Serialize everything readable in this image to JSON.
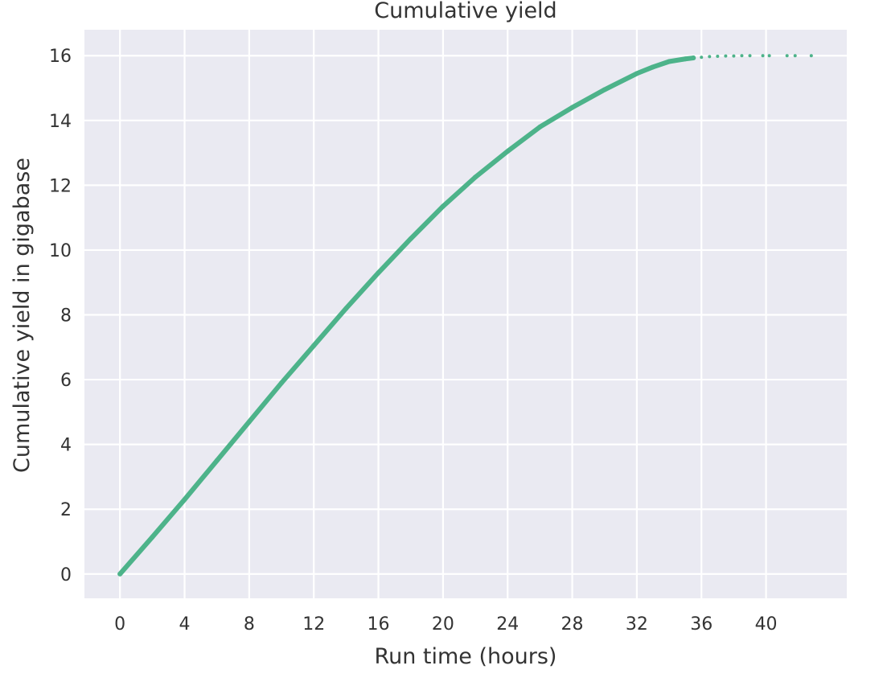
{
  "chart_data": {
    "type": "scatter",
    "title": "Cumulative yield",
    "xlabel": "Run time (hours)",
    "ylabel": "Cumulative yield in gigabase",
    "xlim": [
      -2.2,
      45.0
    ],
    "ylim": [
      -0.75,
      16.8
    ],
    "xticks": [
      0,
      4,
      8,
      12,
      16,
      20,
      24,
      28,
      32,
      36,
      40
    ],
    "yticks": [
      0,
      2,
      4,
      6,
      8,
      10,
      12,
      14,
      16
    ],
    "grid": true,
    "legend": "none",
    "style": {
      "background": "#eaeaf2",
      "grid_color": "#ffffff",
      "series_color": "#4db38a"
    },
    "series": [
      {
        "points": [
          [
            0.0,
            0.0
          ],
          [
            2.0,
            1.14
          ],
          [
            4.0,
            2.3
          ],
          [
            6.0,
            3.5
          ],
          [
            8.0,
            4.7
          ],
          [
            10.0,
            5.9
          ],
          [
            12.0,
            7.05
          ],
          [
            14.0,
            8.2
          ],
          [
            16.0,
            9.3
          ],
          [
            18.0,
            10.35
          ],
          [
            20.0,
            11.35
          ],
          [
            22.0,
            12.25
          ],
          [
            24.0,
            13.05
          ],
          [
            26.0,
            13.8
          ],
          [
            28.0,
            14.4
          ],
          [
            30.0,
            14.95
          ],
          [
            32.0,
            15.45
          ],
          [
            33.0,
            15.65
          ],
          [
            34.0,
            15.82
          ],
          [
            35.0,
            15.9
          ],
          [
            35.5,
            15.93
          ],
          [
            36.0,
            15.95
          ],
          [
            36.5,
            15.97
          ],
          [
            37.0,
            15.98
          ],
          [
            37.5,
            15.99
          ],
          [
            38.0,
            15.99
          ],
          [
            38.5,
            16.0
          ],
          [
            39.0,
            16.0
          ],
          [
            39.8,
            16.0
          ],
          [
            40.2,
            16.0
          ],
          [
            41.3,
            16.0
          ],
          [
            41.8,
            16.0
          ],
          [
            42.8,
            16.0
          ]
        ]
      }
    ]
  }
}
